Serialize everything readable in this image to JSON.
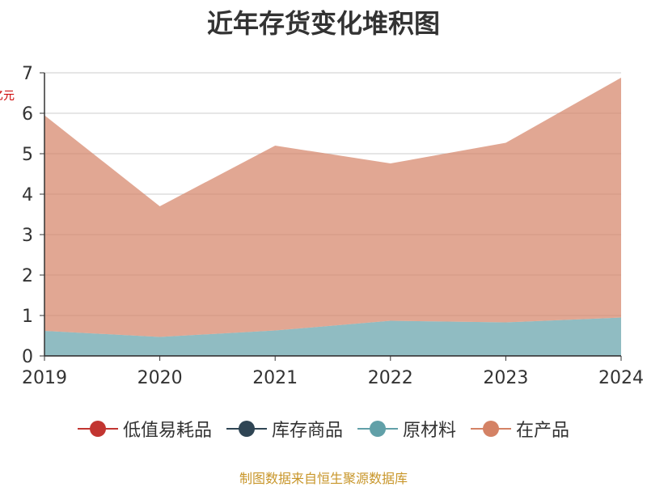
{
  "title": "近年存货变化堆积图",
  "y_unit": "亿元",
  "source": "制图数据来自恒生聚源数据库",
  "chart_data": {
    "type": "area",
    "stacked": true,
    "categories": [
      "2019",
      "2020",
      "2021",
      "2022",
      "2023",
      "2024"
    ],
    "ylim": [
      0,
      7
    ],
    "yticks": [
      "0",
      "1",
      "2",
      "3",
      "4",
      "5",
      "6",
      "7"
    ],
    "grid": true,
    "legend_position": "bottom",
    "series": [
      {
        "name": "低值易耗品",
        "color": "#c23531",
        "values": [
          0,
          0,
          0,
          0,
          0,
          0
        ]
      },
      {
        "name": "库存商品",
        "color": "#2f4554",
        "values": [
          0.02,
          0.02,
          0.02,
          0.02,
          0.02,
          0.02
        ]
      },
      {
        "name": "原材料",
        "color": "#61a0a8",
        "values": [
          0.6,
          0.45,
          0.61,
          0.85,
          0.81,
          0.93
        ]
      },
      {
        "name": "在产品",
        "color": "#d48265",
        "values": [
          5.33,
          3.23,
          4.57,
          3.89,
          4.44,
          5.93
        ]
      }
    ]
  }
}
